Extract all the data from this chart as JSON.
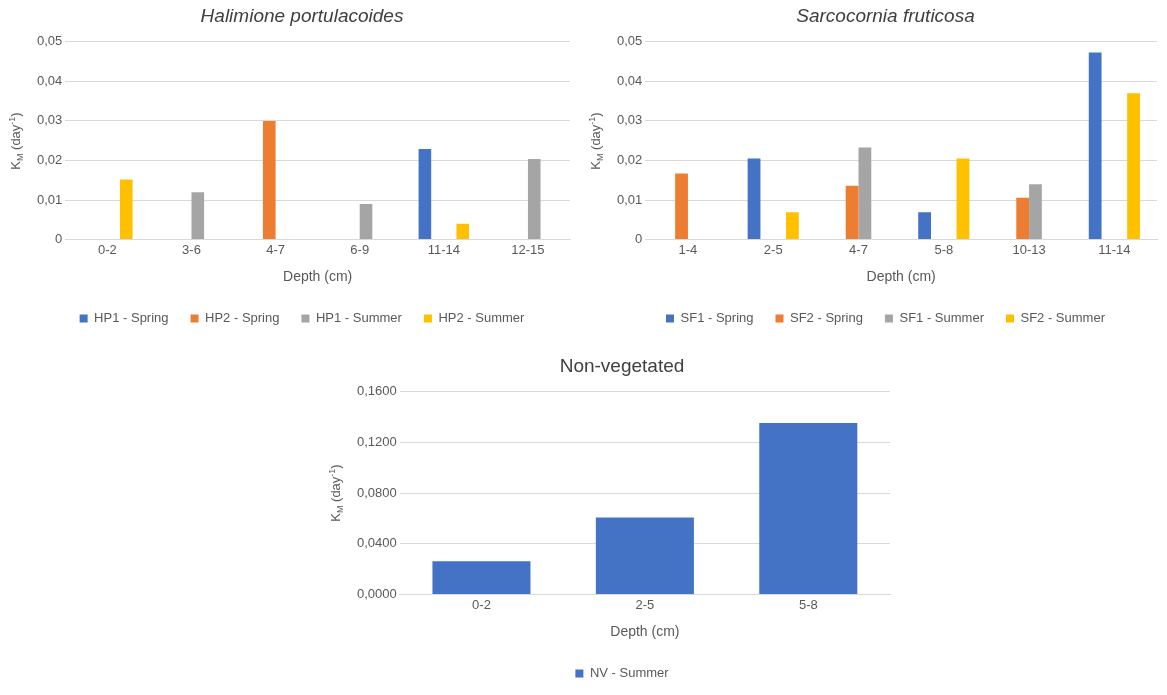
{
  "chart_data": [
    {
      "type": "bar",
      "title": "Halimione portulacoides",
      "xlabel": "Depth (cm)",
      "ylabel": "K$_{M}$ (day$^{-1}$)",
      "categories": [
        "0-2",
        "3-6",
        "4-7",
        "6-9",
        "11-14",
        "12-15"
      ],
      "series": [
        {
          "name": "HP1 - Spring",
          "color": "#4472c4",
          "values": [
            null,
            null,
            null,
            null,
            0.0229,
            null
          ]
        },
        {
          "name": "HP2 - Spring",
          "color": "#ed7d31",
          "values": [
            null,
            null,
            0.03,
            null,
            null,
            null
          ]
        },
        {
          "name": "HP1 - Summer",
          "color": "#a5a5a5",
          "values": [
            null,
            0.012,
            null,
            0.009,
            null,
            0.0204
          ]
        },
        {
          "name": "HP2 - Summer",
          "color": "#ffc000",
          "values": [
            0.0152,
            null,
            null,
            null,
            0.004,
            null
          ]
        }
      ],
      "ylim": [
        0,
        0.05
      ],
      "yticks": [
        0,
        {
          "value": 0.01,
          "label": "0,01"
        },
        {
          "value": 0.02,
          "label": "0,02"
        },
        {
          "value": 0.03,
          "label": "0,03"
        },
        {
          "value": 0.04,
          "label": "0,04"
        },
        {
          "value": 0.05,
          "label": "0,05"
        }
      ],
      "grid": "y",
      "legend": "bottom"
    },
    {
      "type": "bar",
      "title": "Sarcocornia fruticosa",
      "xlabel": "Depth (cm)",
      "ylabel": "K$_{M}$ (day$^{-1}$)",
      "categories": [
        "1-4",
        "2-5",
        "4-7",
        "5-8",
        "10-13",
        "11-14"
      ],
      "series": [
        {
          "name": "SF1 - Spring",
          "color": "#4472c4",
          "values": [
            null,
            0.0205,
            null,
            0.0069,
            null,
            0.0473
          ]
        },
        {
          "name": "SF2 - Spring",
          "color": "#ed7d31",
          "values": [
            0.0167,
            null,
            0.0136,
            null,
            0.0106,
            null
          ]
        },
        {
          "name": "SF1 - Summer",
          "color": "#a5a5a5",
          "values": [
            null,
            null,
            0.0233,
            null,
            0.014,
            null
          ]
        },
        {
          "name": "SF2 - Summer",
          "color": "#ffc000",
          "values": [
            null,
            0.0069,
            null,
            0.0205,
            null,
            0.037
          ]
        }
      ],
      "ylim": [
        0,
        0.05
      ],
      "yticks": [
        0,
        {
          "value": 0.01,
          "label": "0,01"
        },
        {
          "value": 0.02,
          "label": "0,02"
        },
        {
          "value": 0.03,
          "label": "0,03"
        },
        {
          "value": 0.04,
          "label": "0,04"
        },
        {
          "value": 0.05,
          "label": "0,05"
        }
      ],
      "grid": "y",
      "legend": "bottom"
    },
    {
      "type": "bar",
      "title": "Non-vegetated",
      "xlabel": "Depth (cm)",
      "ylabel": "K$_{M}$ (day$^{-1}$)",
      "categories": [
        "0-2",
        "2-5",
        "5-8"
      ],
      "series": [
        {
          "name": "NV - Summer",
          "color": "#4472c4",
          "values": [
            0.0263,
            0.0609,
            0.1353
          ]
        }
      ],
      "ylim": [
        0,
        0.16
      ],
      "yticks": [
        {
          "value": 0,
          "label": "0,0000"
        },
        {
          "value": 0.04,
          "label": "0,0400"
        },
        {
          "value": 0.08,
          "label": "0,0800"
        },
        {
          "value": 0.12,
          "label": "0,1200"
        },
        {
          "value": 0.16,
          "label": "0,1600"
        }
      ],
      "grid": "y",
      "legend": "bottom"
    }
  ]
}
